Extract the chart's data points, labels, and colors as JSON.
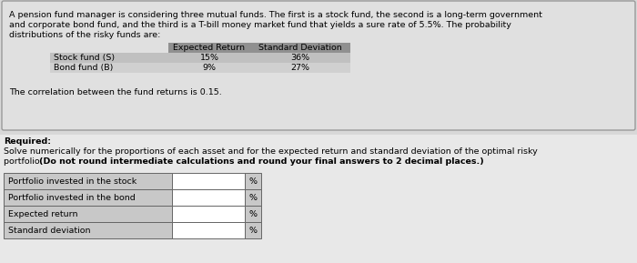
{
  "intro_text_lines": [
    "A pension fund manager is considering three mutual funds. The first is a stock fund, the second is a long-term government",
    "and corporate bond fund, and the third is a T-bill money market fund that yields a sure rate of 5.5%. The probability",
    "distributions of the risky funds are:"
  ],
  "table1_header": [
    "Expected Return",
    "Standard Deviation"
  ],
  "table1_rows": [
    [
      "Stock fund (S)",
      "15%",
      "36%"
    ],
    [
      "Bond fund (B)",
      "9%",
      "27%"
    ]
  ],
  "correlation_text": "The correlation between the fund returns is 0.15.",
  "required_label": "Required:",
  "required_line1": "Solve numerically for the proportions of each asset and for the expected return and standard deviation of the optimal risky",
  "required_line2": "portfolio. (Do not round intermediate calculations and round your final answers to 2 decimal places.)",
  "required_line2_normal": "portfolio. ",
  "required_line2_bold": "(Do not round intermediate calculations and round your final answers to 2 decimal places.)",
  "table2_rows": [
    "Portfolio invested in the stock",
    "Portfolio invested in the bond",
    "Expected return",
    "Standard deviation"
  ],
  "bg_color": "#d8d8d8",
  "box1_bg": "#e0e0e0",
  "box1_border": "#999999",
  "table_header_bg": "#909090",
  "table_row1_bg": "#c0c0c0",
  "table_row2_bg": "#d0d0d0",
  "lower_bg": "#e8e8e8",
  "answer_label_bg": "#c8c8c8",
  "answer_input_bg": "#ffffff",
  "answer_pct_bg": "#c8c8c8",
  "answer_border": "#666666"
}
